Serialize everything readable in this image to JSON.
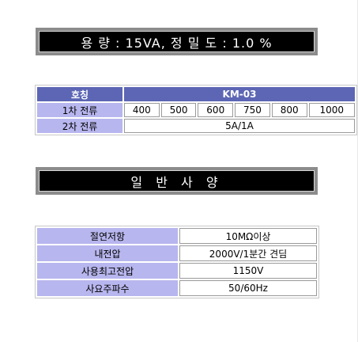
{
  "banner1": {
    "text": "용 량 : 15VA, 정 밀 도 : 1.0 %"
  },
  "spec_table": {
    "header_label": "호칭",
    "header_value": "KM-03",
    "primary_label": "1차 전류",
    "primary_values": [
      "400",
      "500",
      "600",
      "750",
      "800",
      "1000"
    ],
    "secondary_label": "2차 전류",
    "secondary_value": "5A/1A"
  },
  "banner2": {
    "text": "일 반 사 양"
  },
  "general_specs": [
    {
      "label": "절연저항",
      "value": "10MΩ이상"
    },
    {
      "label": "내전압",
      "value": "2000V/1분간 견딤"
    },
    {
      "label": "사용최고전압",
      "value": "1150V"
    },
    {
      "label": "사요주파수",
      "value": "50/60Hz"
    }
  ]
}
